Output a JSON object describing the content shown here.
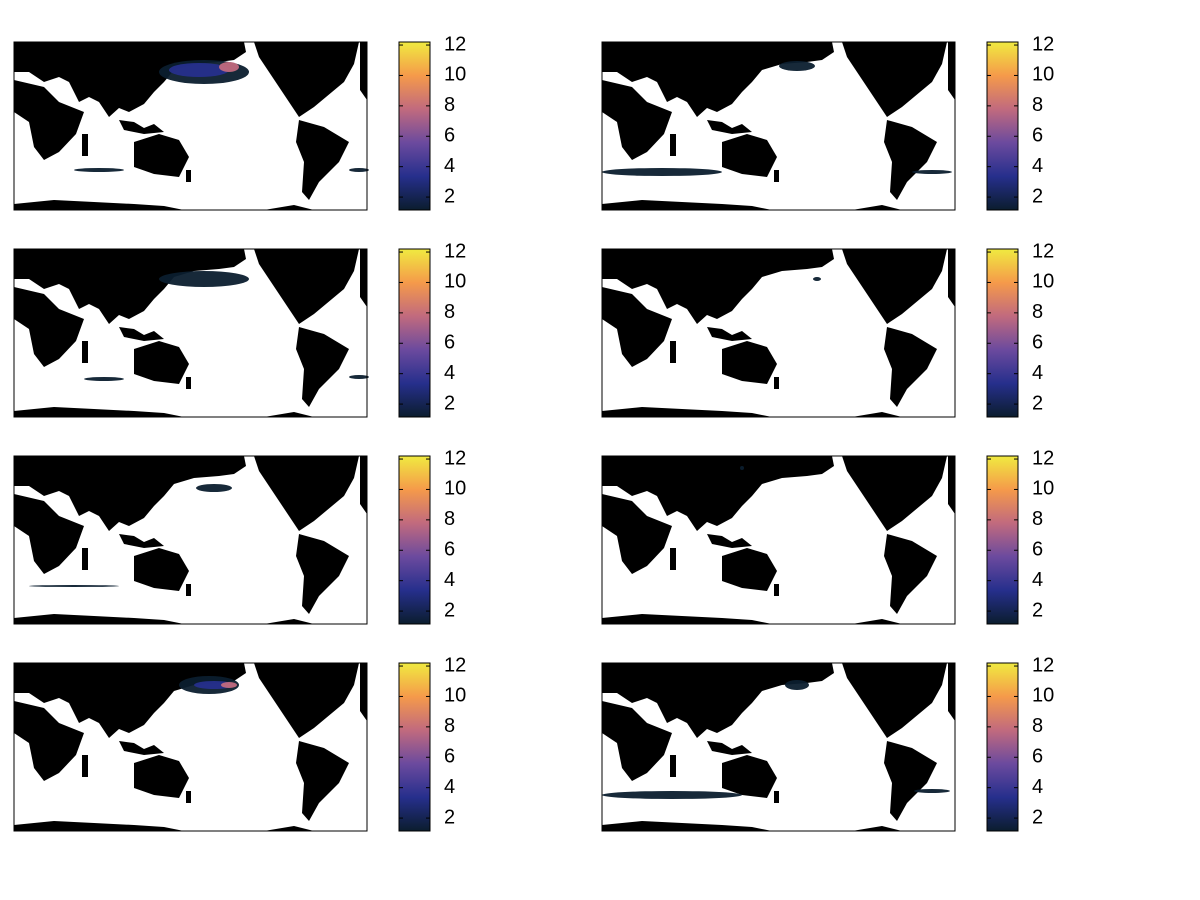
{
  "chart_data": [
    {
      "type": "heatmap",
      "colormap": [
        "#0b1d2e",
        "#262f8c",
        "#6b4a9e",
        "#c16a7e",
        "#f59a4a",
        "#f0ea40"
      ],
      "clim": [
        1.15,
        12.2
      ],
      "cticks": [
        2,
        4,
        6,
        8,
        10,
        12
      ]
    },
    {
      "type": "heatmap",
      "colormap": [
        "#0b1d2e",
        "#262f8c",
        "#6b4a9e",
        "#c16a7e",
        "#f59a4a",
        "#f0ea40"
      ],
      "clim": [
        1.15,
        12.2
      ],
      "cticks": [
        2,
        4,
        6,
        8,
        10,
        12
      ]
    },
    {
      "type": "heatmap",
      "colormap": [
        "#0b1d2e",
        "#262f8c",
        "#6b4a9e",
        "#c16a7e",
        "#f59a4a",
        "#f0ea40"
      ],
      "clim": [
        1.15,
        12.2
      ],
      "cticks": [
        2,
        4,
        6,
        8,
        10,
        12
      ]
    },
    {
      "type": "heatmap",
      "colormap": [
        "#0b1d2e",
        "#262f8c",
        "#6b4a9e",
        "#c16a7e",
        "#f59a4a",
        "#f0ea40"
      ],
      "clim": [
        1.15,
        12.2
      ],
      "cticks": [
        2,
        4,
        6,
        8,
        10,
        12
      ]
    },
    {
      "type": "heatmap",
      "colormap": [
        "#0b1d2e",
        "#262f8c",
        "#6b4a9e",
        "#c16a7e",
        "#f59a4a",
        "#f0ea40"
      ],
      "clim": [
        1.15,
        12.2
      ],
      "cticks": [
        2,
        4,
        6,
        8,
        10,
        12
      ]
    },
    {
      "type": "heatmap",
      "colormap": [
        "#0b1d2e",
        "#262f8c",
        "#6b4a9e",
        "#c16a7e",
        "#f59a4a",
        "#f0ea40"
      ],
      "clim": [
        1.15,
        12.2
      ],
      "cticks": [
        2,
        4,
        6,
        8,
        10,
        12
      ]
    },
    {
      "type": "heatmap",
      "colormap": [
        "#0b1d2e",
        "#262f8c",
        "#6b4a9e",
        "#c16a7e",
        "#f59a4a",
        "#f0ea40"
      ],
      "clim": [
        1.15,
        12.2
      ],
      "cticks": [
        2,
        4,
        6,
        8,
        10,
        12
      ]
    },
    {
      "type": "heatmap",
      "colormap": [
        "#0b1d2e",
        "#262f8c",
        "#6b4a9e",
        "#c16a7e",
        "#f59a4a",
        "#f0ea40"
      ],
      "clim": [
        1.15,
        12.2
      ],
      "cticks": [
        2,
        4,
        6,
        8,
        10,
        12
      ]
    }
  ]
}
